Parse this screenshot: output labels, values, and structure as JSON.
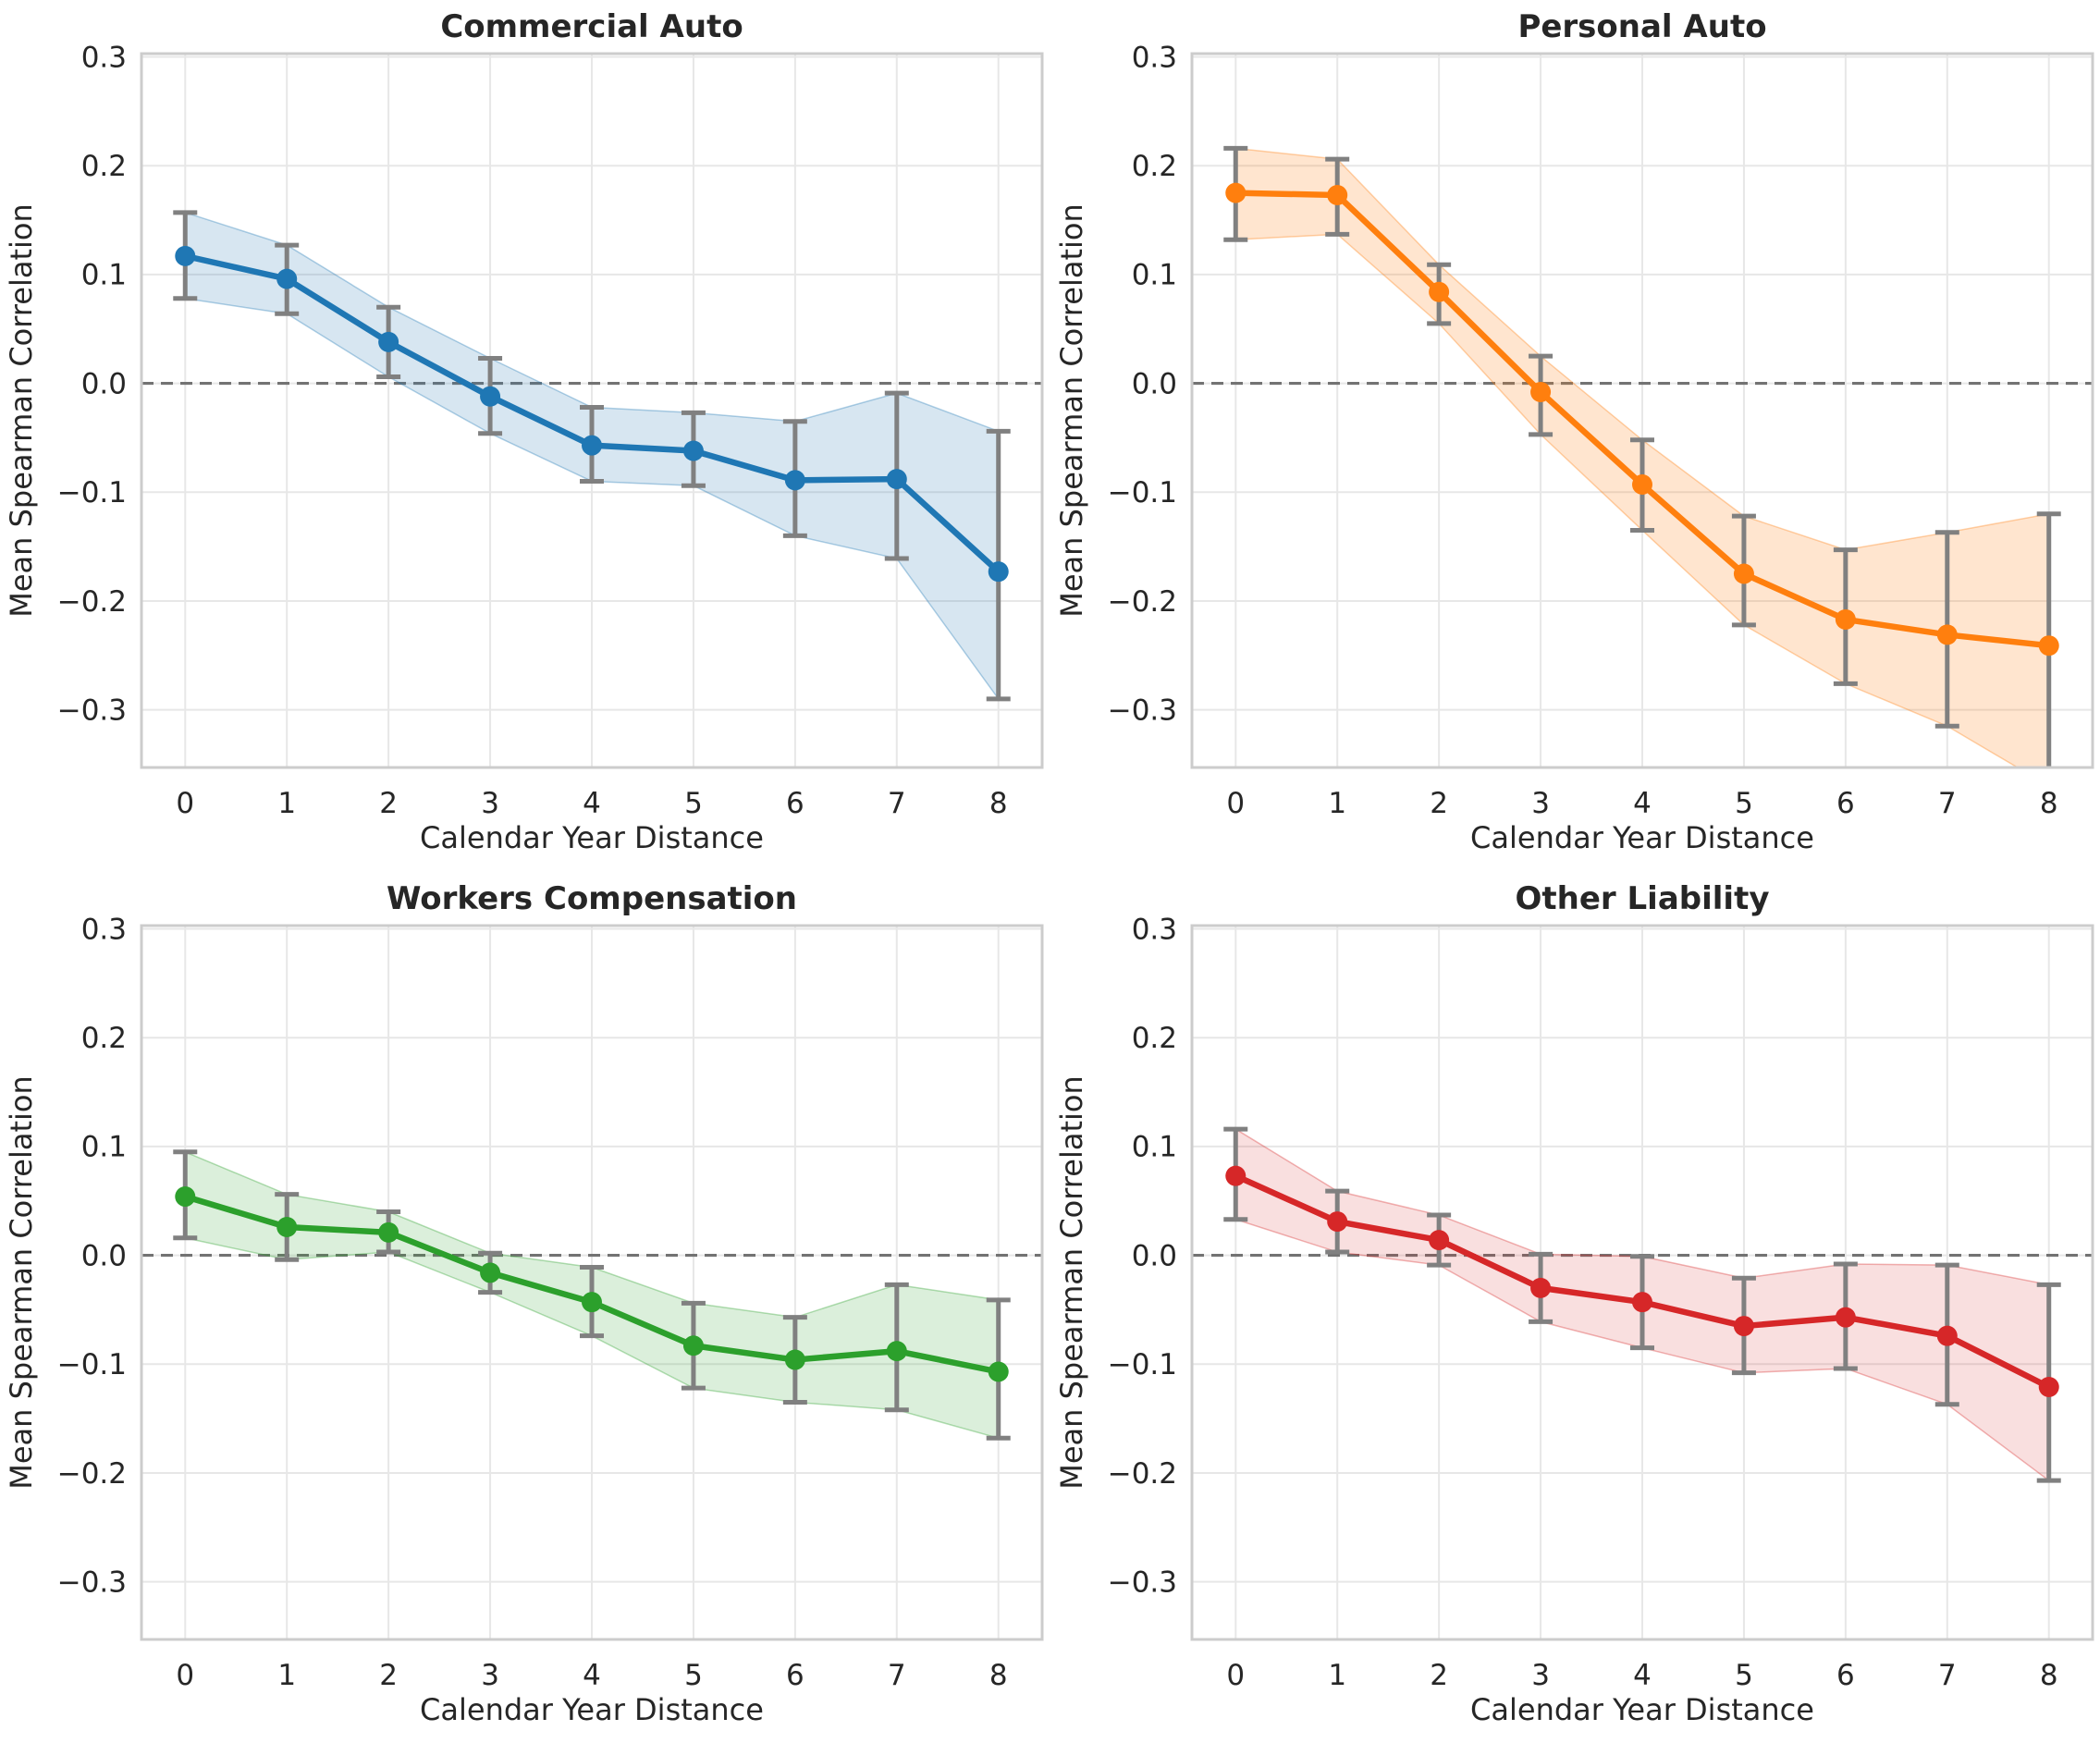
{
  "figure": {
    "background": "#ffffff",
    "text_color": "#262626",
    "grid_color": "#e7e7e7",
    "spine_color": "#cccccc",
    "errorbar_color": "#808080",
    "zero_line_color": "#737373",
    "axis": {
      "xlabel": "Calendar Year Distance",
      "ylabel": "Mean Spearman Correlation",
      "xlim": [
        -0.43,
        8.43
      ],
      "ylim": [
        -0.353,
        0.303
      ],
      "grid": true,
      "zero_line": "dashed",
      "xticks": [
        {
          "v": 0,
          "label": "0"
        },
        {
          "v": 1,
          "label": "1"
        },
        {
          "v": 2,
          "label": "2"
        },
        {
          "v": 3,
          "label": "3"
        },
        {
          "v": 4,
          "label": "4"
        },
        {
          "v": 5,
          "label": "5"
        },
        {
          "v": 6,
          "label": "6"
        },
        {
          "v": 7,
          "label": "7"
        },
        {
          "v": 8,
          "label": "8"
        }
      ],
      "yticks": [
        {
          "v": 0.3,
          "label": "0.3"
        },
        {
          "v": 0.2,
          "label": "0.2"
        },
        {
          "v": 0.1,
          "label": "0.1"
        },
        {
          "v": 0.0,
          "label": "0.0"
        },
        {
          "v": -0.1,
          "label": "−0.1"
        },
        {
          "v": -0.2,
          "label": "−0.2"
        },
        {
          "v": -0.3,
          "label": "−0.3"
        }
      ]
    }
  },
  "chart_data": [
    {
      "type": "line",
      "title": "Commercial Auto",
      "color": "#1f77b4",
      "band_alpha": 0.18,
      "xlabel": "Calendar Year Distance",
      "ylabel": "Mean Spearman Correlation",
      "legend": "none",
      "x": [
        0,
        1,
        2,
        3,
        4,
        5,
        6,
        7,
        8
      ],
      "mean": [
        0.117,
        0.096,
        0.038,
        -0.012,
        -0.057,
        -0.062,
        -0.089,
        -0.088,
        -0.173
      ],
      "ci_upper": [
        0.157,
        0.127,
        0.07,
        0.023,
        -0.022,
        -0.027,
        -0.035,
        -0.009,
        -0.044
      ],
      "ci_lower": [
        0.078,
        0.064,
        0.006,
        -0.046,
        -0.09,
        -0.094,
        -0.14,
        -0.161,
        -0.29
      ]
    },
    {
      "type": "line",
      "title": "Personal Auto",
      "color": "#ff7f0e",
      "band_alpha": 0.2,
      "xlabel": "Calendar Year Distance",
      "ylabel": "Mean Spearman Correlation",
      "legend": "none",
      "x": [
        0,
        1,
        2,
        3,
        4,
        5,
        6,
        7,
        8
      ],
      "mean": [
        0.175,
        0.173,
        0.084,
        -0.008,
        -0.093,
        -0.175,
        -0.217,
        -0.231,
        -0.241
      ],
      "ci_upper": [
        0.216,
        0.206,
        0.109,
        0.025,
        -0.052,
        -0.122,
        -0.153,
        -0.137,
        -0.12
      ],
      "ci_lower": [
        0.132,
        0.137,
        0.055,
        -0.047,
        -0.135,
        -0.222,
        -0.276,
        -0.315,
        -0.37
      ]
    },
    {
      "type": "line",
      "title": "Workers Compensation",
      "color": "#2ca02c",
      "band_alpha": 0.17,
      "xlabel": "Calendar Year Distance",
      "ylabel": "Mean Spearman Correlation",
      "legend": "none",
      "x": [
        0,
        1,
        2,
        3,
        4,
        5,
        6,
        7,
        8
      ],
      "mean": [
        0.054,
        0.026,
        0.021,
        -0.016,
        -0.043,
        -0.083,
        -0.096,
        -0.088,
        -0.107
      ],
      "ci_upper": [
        0.095,
        0.056,
        0.04,
        0.002,
        -0.011,
        -0.044,
        -0.057,
        -0.027,
        -0.041
      ],
      "ci_lower": [
        0.016,
        -0.004,
        0.003,
        -0.034,
        -0.074,
        -0.122,
        -0.135,
        -0.142,
        -0.168
      ]
    },
    {
      "type": "line",
      "title": "Other Liability",
      "color": "#d62728",
      "band_alpha": 0.15,
      "xlabel": "Calendar Year Distance",
      "ylabel": "Mean Spearman Correlation",
      "legend": "none",
      "x": [
        0,
        1,
        2,
        3,
        4,
        5,
        6,
        7,
        8
      ],
      "mean": [
        0.073,
        0.031,
        0.014,
        -0.03,
        -0.043,
        -0.065,
        -0.057,
        -0.074,
        -0.121
      ],
      "ci_upper": [
        0.116,
        0.059,
        0.037,
        0.001,
        -0.001,
        -0.021,
        -0.008,
        -0.009,
        -0.027
      ],
      "ci_lower": [
        0.033,
        0.003,
        -0.009,
        -0.061,
        -0.085,
        -0.108,
        -0.104,
        -0.137,
        -0.207
      ]
    }
  ]
}
